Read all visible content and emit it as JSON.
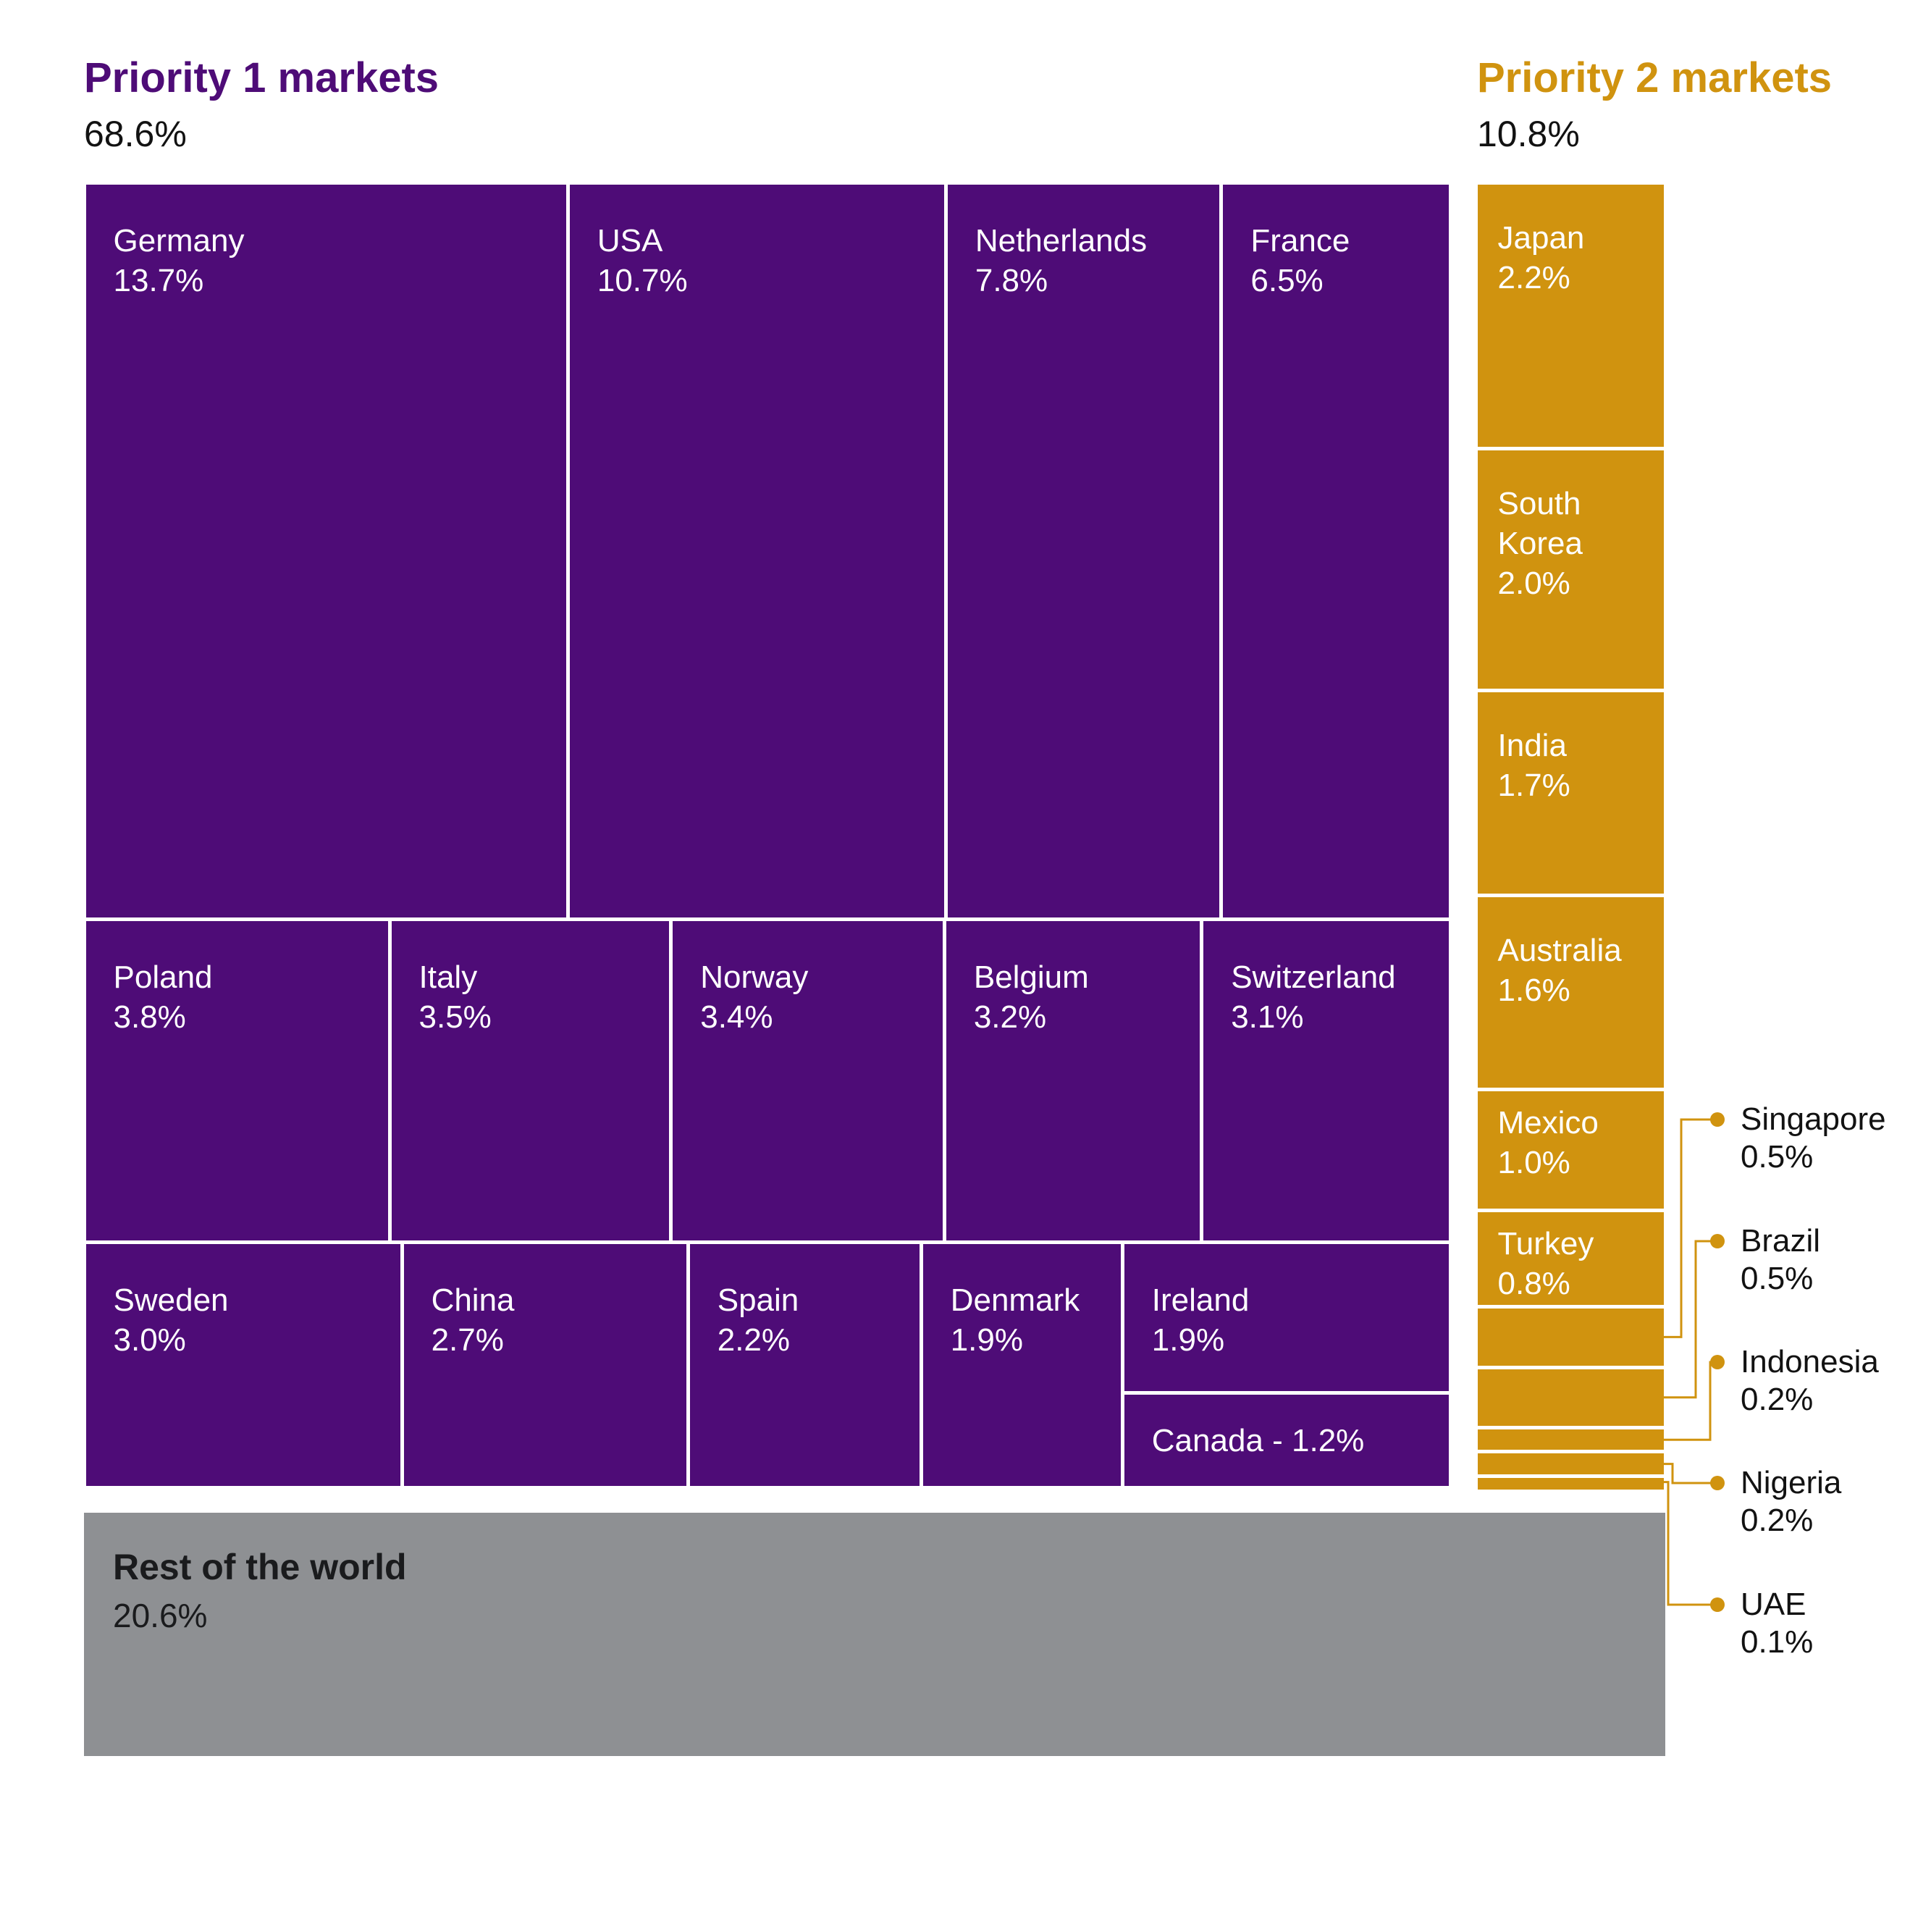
{
  "header": {
    "p1_title": "Priority 1 markets",
    "p1_total": "68.6%",
    "p2_title": "Priority 2 markets",
    "p2_total": "10.8%"
  },
  "colors": {
    "priority1": "#4e0c77",
    "priority2": "#d0930f",
    "rest": "#8e9093",
    "cell_text": "#ffffff",
    "title_text": "#121212"
  },
  "chart_data": {
    "type": "treemap",
    "title": "",
    "legend_position": "none",
    "groups": [
      {
        "name": "Priority 1 markets",
        "total_pct": 68.6,
        "total_label": "68.6%",
        "color_key": "priority1",
        "rows": [
          {
            "items": [
              {
                "label": "Germany",
                "value": 13.7,
                "pct": "13.7%"
              },
              {
                "label": "USA",
                "value": 10.7,
                "pct": "10.7%"
              },
              {
                "label": "Netherlands",
                "value": 7.8,
                "pct": "7.8%"
              },
              {
                "label": "France",
                "value": 6.5,
                "pct": "6.5%"
              }
            ]
          },
          {
            "items": [
              {
                "label": "Poland",
                "value": 3.8,
                "pct": "3.8%"
              },
              {
                "label": "Italy",
                "value": 3.5,
                "pct": "3.5%"
              },
              {
                "label": "Norway",
                "value": 3.4,
                "pct": "3.4%"
              },
              {
                "label": "Belgium",
                "value": 3.2,
                "pct": "3.2%"
              },
              {
                "label": "Switzerland",
                "value": 3.1,
                "pct": "3.1%"
              }
            ]
          },
          {
            "items": [
              {
                "label": "Sweden",
                "value": 3.0,
                "pct": "3.0%"
              },
              {
                "label": "China",
                "value": 2.7,
                "pct": "2.7%"
              },
              {
                "label": "Spain",
                "value": 2.2,
                "pct": "2.2%"
              },
              {
                "label": "Denmark",
                "value": 1.9,
                "pct": "1.9%"
              },
              {
                "stack": [
                  {
                    "label": "Ireland",
                    "value": 1.9,
                    "pct": "1.9%"
                  },
                  {
                    "label": "Canada",
                    "value": 1.2,
                    "pct": "1.2%",
                    "inline_label": "Canada - 1.2%"
                  }
                ]
              }
            ]
          }
        ]
      },
      {
        "name": "Priority 2 markets",
        "total_pct": 10.8,
        "total_label": "10.8%",
        "color_key": "priority2",
        "items": [
          {
            "label": "Japan",
            "value": 2.2,
            "pct": "2.2%"
          },
          {
            "label": "South Korea",
            "value": 2.0,
            "pct": "2.0%"
          },
          {
            "label": "India",
            "value": 1.7,
            "pct": "1.7%"
          },
          {
            "label": "Australia",
            "value": 1.6,
            "pct": "1.6%"
          },
          {
            "label": "Mexico",
            "value": 1.0,
            "pct": "1.0%"
          },
          {
            "label": "Turkey",
            "value": 0.8,
            "pct": "0.8%"
          },
          {
            "label": "Singapore",
            "value": 0.5,
            "pct": "0.5%",
            "callout": true
          },
          {
            "label": "Brazil",
            "value": 0.5,
            "pct": "0.5%",
            "callout": true
          },
          {
            "label": "Indonesia",
            "value": 0.2,
            "pct": "0.2%",
            "callout": true
          },
          {
            "label": "Nigeria",
            "value": 0.2,
            "pct": "0.2%",
            "callout": true
          },
          {
            "label": "UAE",
            "value": 0.1,
            "pct": "0.1%",
            "callout": true
          }
        ]
      },
      {
        "name": "Rest of the world",
        "total_pct": 20.6,
        "total_label": "20.6%",
        "color_key": "rest"
      }
    ]
  }
}
